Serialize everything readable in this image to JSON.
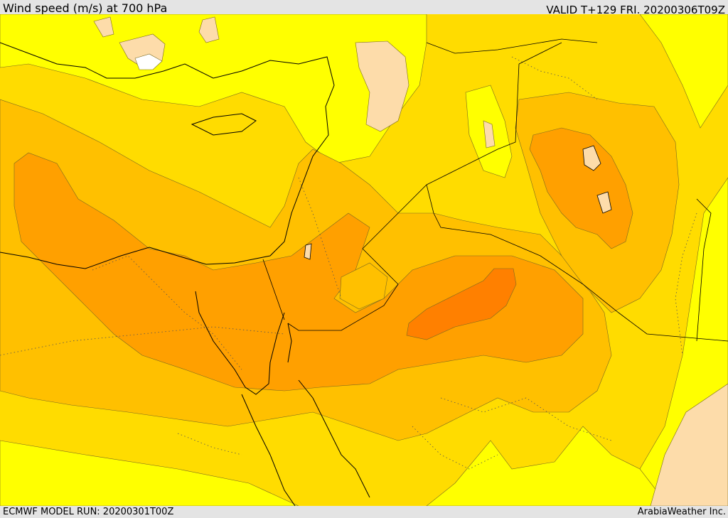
{
  "header": {
    "title": "Wind speed (m/s) at 700 hPa",
    "valid": "VALID T+129 FRI. 20200306T09Z"
  },
  "footer": {
    "model_run": "ECMWF MODEL RUN: 20200301T00Z",
    "credit": "ArabiaWeather Inc."
  },
  "colors": {
    "band_0_5": "#ffffff",
    "band_5_10": "#fddcaa",
    "band_10_15": "#ffff00",
    "band_15_20": "#ffdc00",
    "band_20_25": "#ffc000",
    "band_25_30": "#ffa000",
    "band_30_35": "#ff8000",
    "coastline": "#000000"
  }
}
